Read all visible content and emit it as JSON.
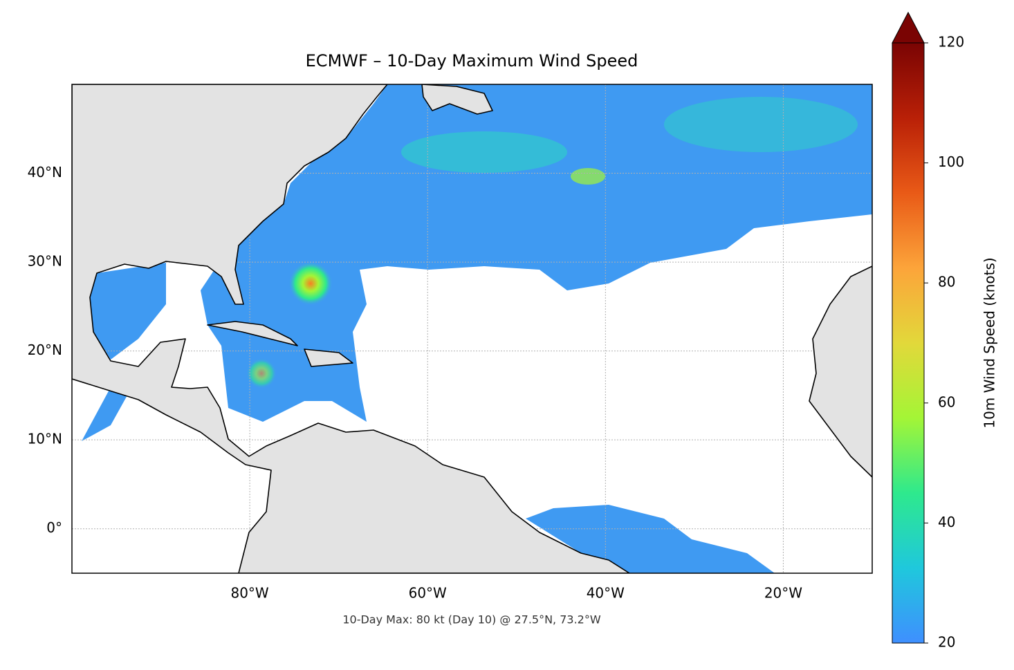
{
  "chart_data": {
    "type": "map",
    "title": "ECMWF – 10-Day Maximum Wind Speed",
    "annotation": "10-Day Max: 80 kt (Day 10) @ 27.5°N, 73.2°W",
    "xlim": [
      -100,
      -10
    ],
    "ylim": [
      -5,
      50
    ],
    "xticks": [
      {
        "value": -80,
        "label": "80°W"
      },
      {
        "value": -60,
        "label": "60°W"
      },
      {
        "value": -40,
        "label": "40°W"
      },
      {
        "value": -20,
        "label": "20°W"
      }
    ],
    "yticks": [
      {
        "value": 0,
        "label": "0°"
      },
      {
        "value": 10,
        "label": "10°N"
      },
      {
        "value": 20,
        "label": "20°N"
      },
      {
        "value": 30,
        "label": "30°N"
      },
      {
        "value": 40,
        "label": "40°N"
      }
    ],
    "grid": true,
    "colorbar": {
      "label": "10m Wind Speed (knots)",
      "lim": [
        20,
        120
      ],
      "ticks": [
        20,
        40,
        60,
        80,
        100,
        120
      ],
      "colors": [
        "#3f8fff",
        "#1fc8dc",
        "#2ee98d",
        "#a4f536",
        "#e2d83a",
        "#fca43a",
        "#e95a17",
        "#b92007",
        "#7a0403"
      ],
      "extend": "max"
    }
  }
}
